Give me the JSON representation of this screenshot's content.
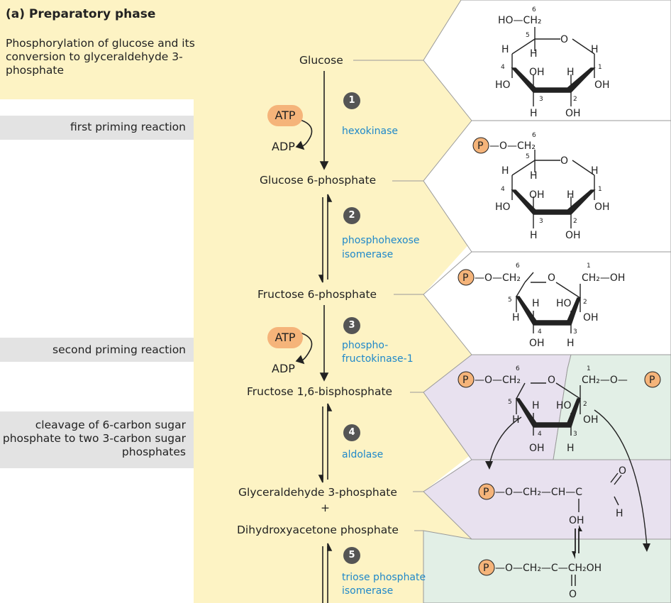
{
  "header": {
    "title": "(a) Preparatory phase",
    "subtitle": "Phosphorylation of glucose and its conversion to glyceraldehyde 3-phosphate"
  },
  "side_labels": {
    "first": "first priming reaction",
    "second": "second priming reaction",
    "cleavage": "cleavage of 6-carbon sugar phosphate to two 3-carbon sugar phosphates"
  },
  "metabolites": {
    "glucose": "Glucose",
    "g6p": "Glucose 6-phosphate",
    "f6p": "Fructose 6-phosphate",
    "f16bp": "Fructose 1,6-bisphosphate",
    "gap": "Glyceraldehyde 3-phosphate",
    "plus": "+",
    "dhap": "Dihydroxyacetone phosphate"
  },
  "steps": [
    "1",
    "2",
    "3",
    "4",
    "5"
  ],
  "enzymes": {
    "hexokinase": "hexokinase",
    "phi_1": "phosphohexose",
    "phi_2": "isomerase",
    "pfk_1": "phospho-",
    "pfk_2": "fructokinase-1",
    "aldolase": "aldolase",
    "tpi_1": "triose phosphate",
    "tpi_2": "isomerase"
  },
  "cofactors": {
    "atp": "ATP",
    "adp": "ADP"
  },
  "chem": {
    "p": "P",
    "o": "O",
    "oh": "OH",
    "h": "H",
    "ho": "HO",
    "ho_ch2": "HO—CH₂",
    "o_ch2": "—O—CH₂",
    "ch2_oh": "CH₂—OH",
    "ch2_o": "CH₂—O—",
    "gap_chain": "—O—CH₂—CH—C",
    "dhap_chain": "—O—CH₂—C—CH₂OH",
    "n1": "1",
    "n2": "2",
    "n3": "3",
    "n4": "4",
    "n5": "5",
    "n6": "6"
  },
  "colors": {
    "yellow": "#fdf3c4",
    "purple": "#e8e1ef",
    "green": "#e2efe6",
    "enzyme_blue": "#1f88c9",
    "atp_orange": "#f5b47a",
    "gray_bar": "#e3e3e3"
  }
}
